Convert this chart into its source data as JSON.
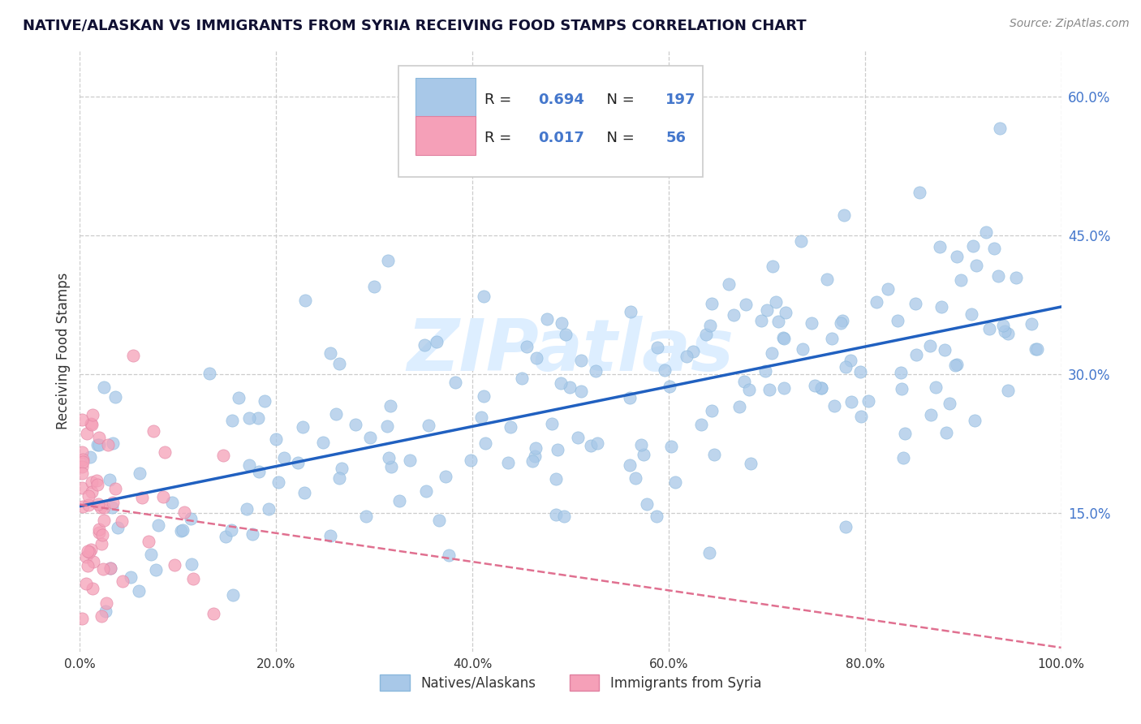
{
  "title": "NATIVE/ALASKAN VS IMMIGRANTS FROM SYRIA RECEIVING FOOD STAMPS CORRELATION CHART",
  "source": "Source: ZipAtlas.com",
  "ylabel": "Receiving Food Stamps",
  "legend_label1": "Natives/Alaskans",
  "legend_label2": "Immigrants from Syria",
  "R1": 0.694,
  "N1": 197,
  "R2": 0.017,
  "N2": 56,
  "color1": "#a8c8e8",
  "color2": "#f5a0b8",
  "trendline1_color": "#2060c0",
  "trendline2_color": "#e07090",
  "background_color": "#ffffff",
  "grid_color": "#cccccc",
  "xmin": 0.0,
  "xmax": 1.0,
  "ymin": 0.0,
  "ymax": 0.65,
  "ytick_vals": [
    0.15,
    0.3,
    0.45,
    0.6
  ],
  "xtick_vals": [
    0.0,
    0.2,
    0.4,
    0.6,
    0.8,
    1.0
  ],
  "tick_color": "#4477cc",
  "watermark": "ZIPatlas",
  "watermark_color": "#ddeeff",
  "legend_R_color": "#4477cc",
  "legend_N_color": "#4477cc",
  "title_color": "#111133",
  "source_color": "#888888"
}
